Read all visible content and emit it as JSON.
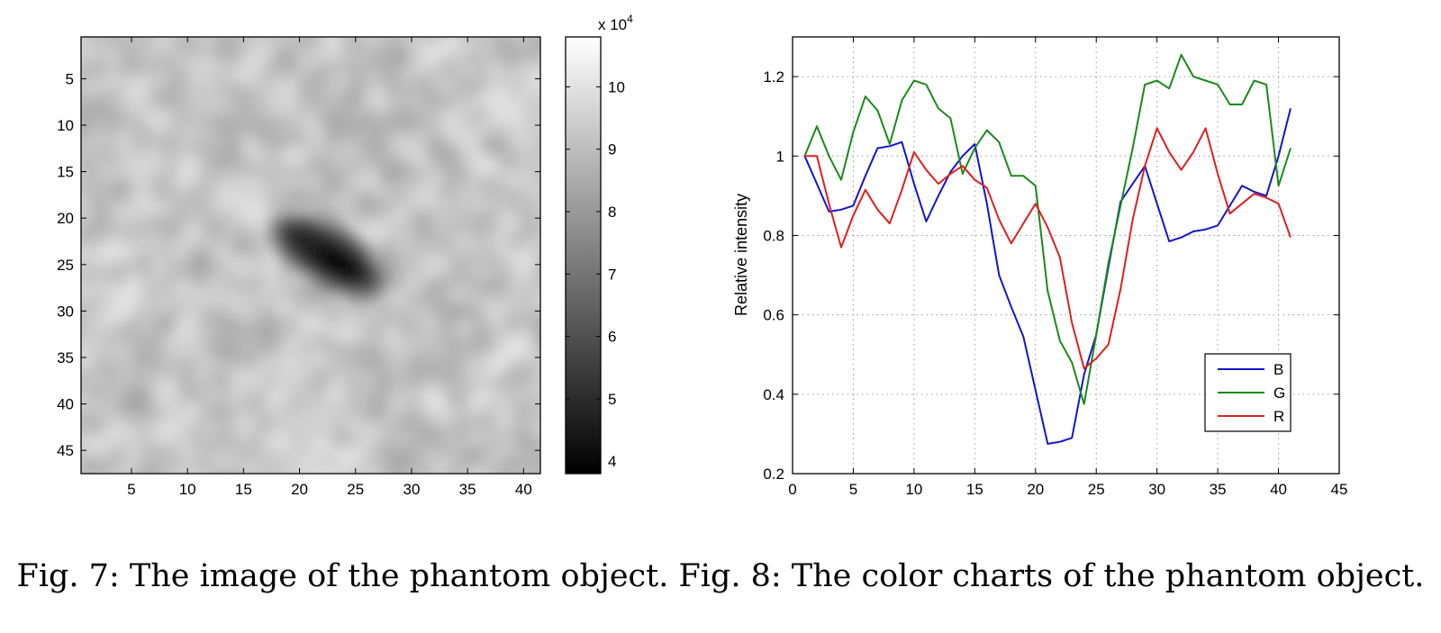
{
  "caption": {
    "fig7": "Fig. 7: The image of the phantom object.",
    "fig8": "Fig. 8: The color charts of the phantom object."
  },
  "chart_data": [
    {
      "type": "heatmap",
      "title": "",
      "xlabel": "",
      "ylabel": "",
      "colormap": "gray",
      "x_ticks": [
        5,
        10,
        15,
        20,
        25,
        30,
        35,
        40
      ],
      "y_ticks": [
        5,
        10,
        15,
        20,
        25,
        30,
        35,
        40,
        45
      ],
      "xlim": [
        0.5,
        41.5
      ],
      "ylim": [
        0.5,
        47.5
      ],
      "y_reversed": true,
      "background_level": 9.2,
      "dark_region": {
        "center_x": 22.5,
        "center_y": 24,
        "min_value": 3.8,
        "orientation": "diagonal"
      },
      "colorbar": {
        "ticks": [
          4,
          5,
          6,
          7,
          8,
          9,
          10
        ],
        "range": [
          3.8,
          10.8
        ],
        "multiplier": "x 10",
        "exponent": "4"
      }
    },
    {
      "type": "line",
      "title": "",
      "xlabel": "",
      "ylabel": "Relative  intensity",
      "xlim": [
        0,
        45
      ],
      "ylim": [
        0.2,
        1.3
      ],
      "x_ticks": [
        0,
        5,
        10,
        15,
        20,
        25,
        30,
        35,
        40,
        45
      ],
      "y_ticks": [
        0.2,
        0.4,
        0.6,
        0.8,
        1,
        1.2
      ],
      "y_tick_labels": [
        "0.2",
        "0.4",
        "0.6",
        "0.8",
        "1",
        "1.2"
      ],
      "grid": true,
      "legend": "lower-right",
      "x": [
        1,
        2,
        3,
        4,
        5,
        6,
        7,
        8,
        9,
        10,
        11,
        12,
        13,
        14,
        15,
        16,
        17,
        18,
        19,
        20,
        21,
        22,
        23,
        24,
        25,
        26,
        27,
        28,
        29,
        30,
        31,
        32,
        33,
        34,
        35,
        36,
        37,
        38,
        39,
        40,
        41
      ],
      "series": [
        {
          "name": "B",
          "color": "#1515cc",
          "values": [
            1.0,
            0.93,
            0.86,
            0.865,
            0.875,
            0.95,
            1.02,
            1.025,
            1.035,
            0.93,
            0.835,
            0.9,
            0.96,
            1.0,
            1.03,
            0.88,
            0.7,
            0.62,
            0.545,
            0.41,
            0.275,
            0.28,
            0.29,
            0.45,
            0.55,
            0.72,
            0.885,
            0.93,
            0.975,
            0.88,
            0.785,
            0.795,
            0.81,
            0.815,
            0.825,
            0.875,
            0.925,
            0.91,
            0.9,
            1.0,
            1.12
          ]
        },
        {
          "name": "G",
          "color": "#1a8a1a",
          "values": [
            1.0,
            1.075,
            1.0,
            0.94,
            1.06,
            1.15,
            1.115,
            1.03,
            1.14,
            1.19,
            1.18,
            1.12,
            1.095,
            0.955,
            1.02,
            1.065,
            1.035,
            0.95,
            0.95,
            0.925,
            0.66,
            0.535,
            0.48,
            0.375,
            0.55,
            0.73,
            0.875,
            1.02,
            1.18,
            1.19,
            1.17,
            1.255,
            1.2,
            1.19,
            1.18,
            1.13,
            1.13,
            1.19,
            1.18,
            0.925,
            1.02
          ]
        },
        {
          "name": "R",
          "color": "#dd2020",
          "values": [
            1.0,
            1.0,
            0.88,
            0.77,
            0.85,
            0.915,
            0.865,
            0.83,
            0.915,
            1.01,
            0.965,
            0.93,
            0.955,
            0.975,
            0.94,
            0.92,
            0.84,
            0.78,
            0.83,
            0.88,
            0.82,
            0.745,
            0.58,
            0.465,
            0.49,
            0.525,
            0.665,
            0.84,
            0.975,
            1.07,
            1.01,
            0.965,
            1.01,
            1.07,
            0.955,
            0.855,
            0.88,
            0.905,
            0.895,
            0.88,
            0.795
          ]
        }
      ]
    }
  ]
}
